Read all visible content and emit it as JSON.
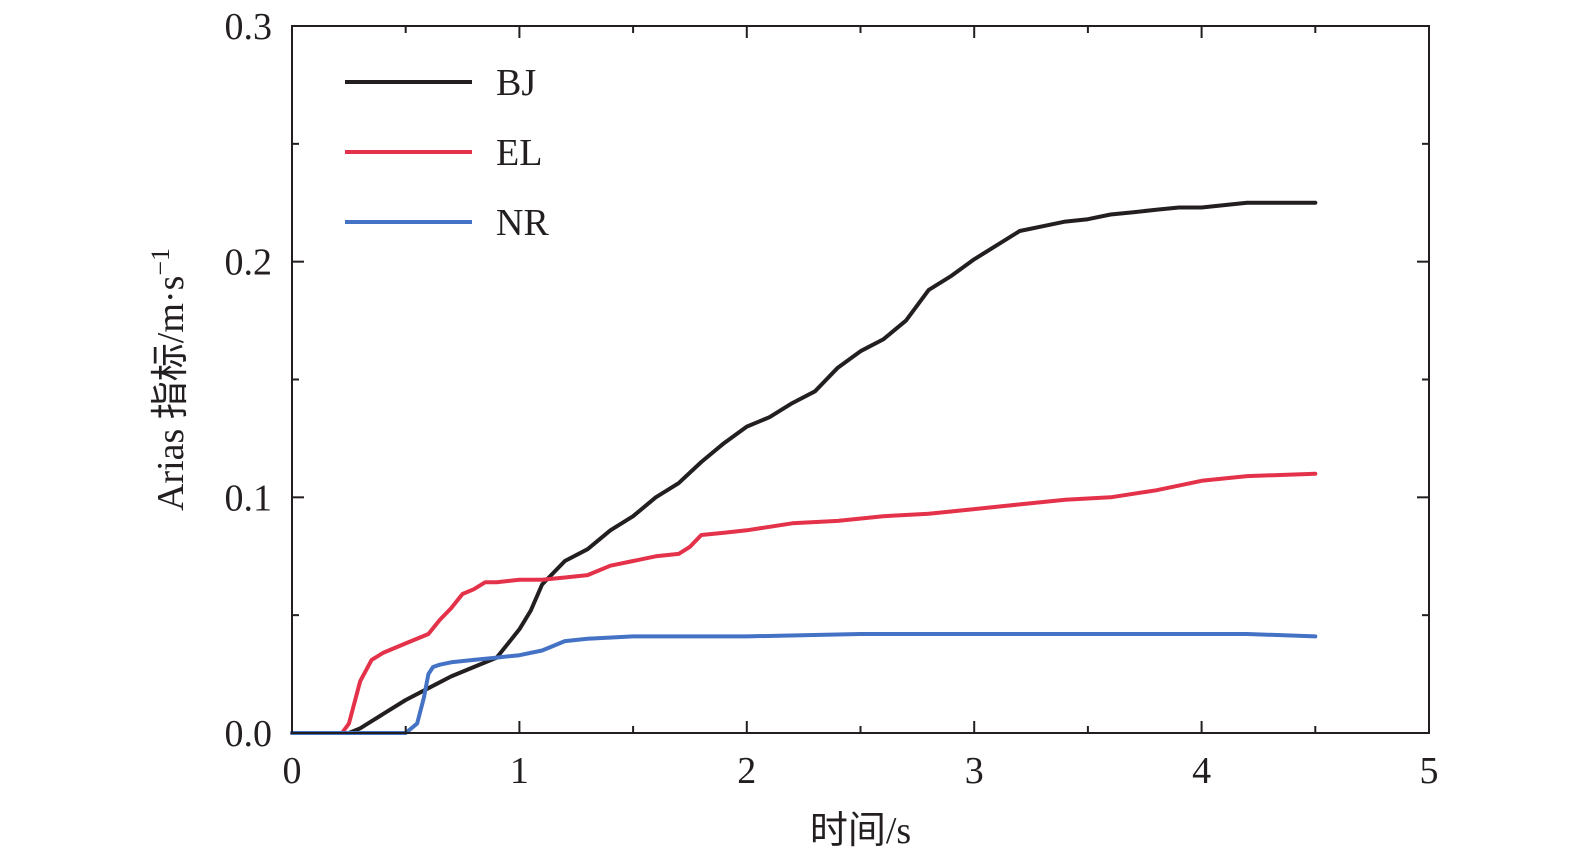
{
  "chart_data": {
    "type": "line",
    "xlabel": "时间/s",
    "ylabel": {
      "prefix": "Arias 指标/m·s",
      "superscript": "−1"
    },
    "xlim": [
      0,
      5
    ],
    "ylim": [
      0,
      0.3
    ],
    "x_ticks": [
      0,
      1,
      2,
      3,
      4,
      5
    ],
    "x_tick_labels": [
      "0",
      "1",
      "2",
      "3",
      "4",
      "5"
    ],
    "y_ticks": [
      0,
      0.1,
      0.2,
      0.3
    ],
    "y_tick_labels": [
      "0.0",
      "0.1",
      "0.2",
      "0.3"
    ],
    "grid": false,
    "legend_position": "top-left",
    "series": [
      {
        "name": "BJ",
        "color": "#231f20",
        "x": [
          0,
          0.25,
          0.3,
          0.35,
          0.4,
          0.5,
          0.6,
          0.7,
          0.8,
          0.9,
          1.0,
          1.05,
          1.1,
          1.2,
          1.3,
          1.4,
          1.5,
          1.6,
          1.7,
          1.8,
          1.9,
          2.0,
          2.1,
          2.2,
          2.3,
          2.4,
          2.5,
          2.6,
          2.7,
          2.8,
          2.9,
          3.0,
          3.1,
          3.2,
          3.3,
          3.4,
          3.5,
          3.6,
          3.7,
          3.8,
          3.9,
          4.0,
          4.1,
          4.2,
          4.3,
          4.4,
          4.5
        ],
        "y": [
          0,
          0,
          0.002,
          0.005,
          0.008,
          0.014,
          0.019,
          0.024,
          0.028,
          0.032,
          0.044,
          0.052,
          0.063,
          0.073,
          0.078,
          0.086,
          0.092,
          0.1,
          0.106,
          0.115,
          0.123,
          0.13,
          0.134,
          0.14,
          0.145,
          0.155,
          0.162,
          0.167,
          0.175,
          0.188,
          0.194,
          0.201,
          0.207,
          0.213,
          0.215,
          0.217,
          0.218,
          0.22,
          0.221,
          0.222,
          0.223,
          0.223,
          0.224,
          0.225,
          0.225,
          0.225,
          0.225
        ]
      },
      {
        "name": "EL",
        "color": "#e4324a",
        "x": [
          0,
          0.22,
          0.25,
          0.3,
          0.35,
          0.4,
          0.5,
          0.6,
          0.65,
          0.7,
          0.75,
          0.8,
          0.85,
          0.9,
          1.0,
          1.1,
          1.2,
          1.3,
          1.4,
          1.5,
          1.6,
          1.7,
          1.75,
          1.8,
          1.9,
          2.0,
          2.2,
          2.4,
          2.6,
          2.8,
          3.0,
          3.2,
          3.4,
          3.6,
          3.8,
          3.9,
          4.0,
          4.2,
          4.5
        ],
        "y": [
          0,
          0,
          0.004,
          0.022,
          0.031,
          0.034,
          0.038,
          0.042,
          0.048,
          0.053,
          0.059,
          0.061,
          0.064,
          0.064,
          0.065,
          0.065,
          0.066,
          0.067,
          0.071,
          0.073,
          0.075,
          0.076,
          0.079,
          0.084,
          0.085,
          0.086,
          0.089,
          0.09,
          0.092,
          0.093,
          0.095,
          0.097,
          0.099,
          0.1,
          0.103,
          0.105,
          0.107,
          0.109,
          0.11
        ]
      },
      {
        "name": "NR",
        "color": "#4472c4",
        "x": [
          0,
          0.5,
          0.55,
          0.58,
          0.6,
          0.62,
          0.65,
          0.7,
          0.8,
          0.9,
          1.0,
          1.1,
          1.2,
          1.3,
          1.5,
          2.0,
          2.5,
          3.0,
          3.5,
          4.0,
          4.2,
          4.5
        ],
        "y": [
          0,
          0,
          0.004,
          0.015,
          0.025,
          0.028,
          0.029,
          0.03,
          0.031,
          0.032,
          0.033,
          0.035,
          0.039,
          0.04,
          0.041,
          0.041,
          0.042,
          0.042,
          0.042,
          0.042,
          0.042,
          0.041
        ]
      }
    ]
  }
}
